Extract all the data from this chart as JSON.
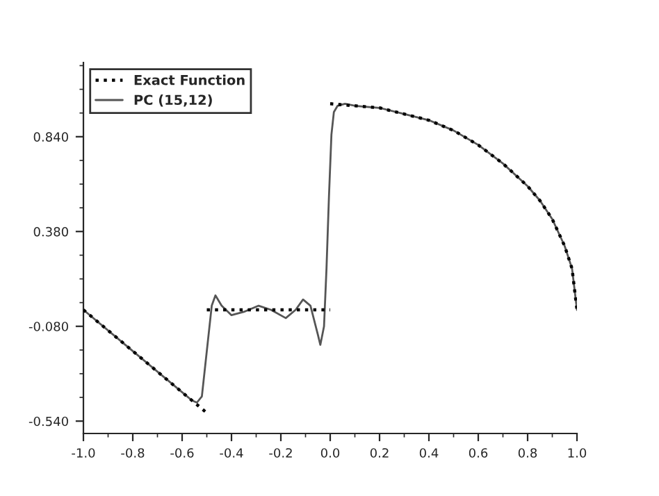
{
  "chart_data": {
    "type": "line",
    "xlim": [
      -1.0,
      1.0
    ],
    "ylim": [
      -0.6,
      1.2
    ],
    "xticks": [
      {
        "value": -1.0,
        "label": "-1.0"
      },
      {
        "value": -0.8,
        "label": "-0.8"
      },
      {
        "value": -0.6,
        "label": "-0.6"
      },
      {
        "value": -0.4,
        "label": "-0.4"
      },
      {
        "value": -0.2,
        "label": "-0.2"
      },
      {
        "value": 0.0,
        "label": "0.0"
      },
      {
        "value": 0.2,
        "label": "0.2"
      },
      {
        "value": 0.4,
        "label": "0.4"
      },
      {
        "value": 0.6,
        "label": "0.6"
      },
      {
        "value": 0.8,
        "label": "0.8"
      },
      {
        "value": 1.0,
        "label": "1.0"
      }
    ],
    "yticks": [
      {
        "value": -0.54,
        "label": "-0.540"
      },
      {
        "value": -0.08,
        "label": "-0.080"
      },
      {
        "value": 0.38,
        "label": "0.380"
      },
      {
        "value": 0.84,
        "label": "0.840"
      }
    ],
    "legend": "top left",
    "grid": false,
    "series": [
      {
        "name": "Exact Function",
        "color": "#000000",
        "line_style": "dotted",
        "x": [
          -1.0,
          -0.75,
          -0.5
        ],
        "values": [
          0.0,
          -0.25,
          -0.5
        ]
      },
      {
        "color": "#000000",
        "line_style": "dotted",
        "x": [
          -0.5,
          -0.25,
          0.0
        ],
        "values": [
          0.0,
          0.0,
          0.0
        ]
      },
      {
        "color": "#000000",
        "line_style": "dotted",
        "x": [
          0.0,
          0.1,
          0.2,
          0.3,
          0.4,
          0.5,
          0.6,
          0.7,
          0.8,
          0.85,
          0.9,
          0.95,
          0.98,
          1.0
        ],
        "values": [
          1.0,
          0.99,
          0.98,
          0.95,
          0.92,
          0.87,
          0.8,
          0.71,
          0.6,
          0.53,
          0.44,
          0.31,
          0.2,
          0.0
        ]
      },
      {
        "name": "PC (15,12)",
        "color": "#555555",
        "line_style": "solid",
        "x": [
          -1.0,
          -0.8,
          -0.6,
          -0.56,
          -0.54,
          -0.52,
          -0.5,
          -0.48,
          -0.465,
          -0.44,
          -0.4,
          -0.35,
          -0.29,
          -0.24,
          -0.18,
          -0.14,
          -0.11,
          -0.08,
          -0.05,
          -0.04,
          -0.025,
          -0.015,
          -0.005,
          0.005,
          0.015,
          0.03,
          0.06,
          0.1,
          0.2,
          0.3,
          0.4,
          0.5,
          0.6,
          0.7,
          0.8,
          0.85,
          0.9,
          0.95,
          0.98,
          1.0
        ],
        "values": [
          0.0,
          -0.2,
          -0.4,
          -0.44,
          -0.45,
          -0.42,
          -0.2,
          0.02,
          0.07,
          0.02,
          -0.026,
          -0.01,
          0.02,
          0.0,
          -0.04,
          0.0,
          0.05,
          0.02,
          -0.12,
          -0.17,
          -0.08,
          0.2,
          0.55,
          0.85,
          0.96,
          0.99,
          1.0,
          0.99,
          0.98,
          0.95,
          0.92,
          0.87,
          0.8,
          0.71,
          0.6,
          0.53,
          0.44,
          0.31,
          0.2,
          0.0
        ]
      }
    ]
  }
}
